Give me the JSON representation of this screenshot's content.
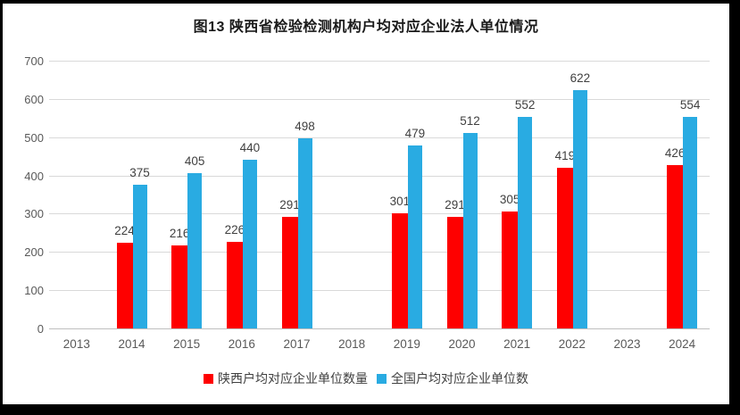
{
  "frame": {
    "border_color": "#000000",
    "background": "#ffffff"
  },
  "chart_data": {
    "type": "bar",
    "title": "图13  陕西省检验检测机构户均对应企业法人单位情况",
    "categories": [
      "2013",
      "2014",
      "2015",
      "2016",
      "2017",
      "2018",
      "2019",
      "2020",
      "2021",
      "2022",
      "2023",
      "2024"
    ],
    "series": [
      {
        "name": "陕西户均对应企业单位数量",
        "color": "#fe0000",
        "values": [
          null,
          224,
          216,
          226,
          291,
          null,
          301,
          291,
          305,
          419,
          null,
          426
        ]
      },
      {
        "name": "全国户均对应企业单位数",
        "color": "#29abe2",
        "values": [
          null,
          375,
          405,
          440,
          498,
          null,
          479,
          512,
          552,
          622,
          null,
          554
        ]
      }
    ],
    "xlabel": "",
    "ylabel": "",
    "ylim": [
      0,
      700
    ],
    "yticks": [
      0,
      100,
      200,
      300,
      400,
      500,
      600,
      700
    ],
    "grid": true,
    "data_labels": true,
    "legend_position": "bottom",
    "gridline_color": "#d9d9d9",
    "axis_line_color": "#bfbfbf",
    "tick_label_color": "#595959",
    "data_label_color": "#404040"
  }
}
